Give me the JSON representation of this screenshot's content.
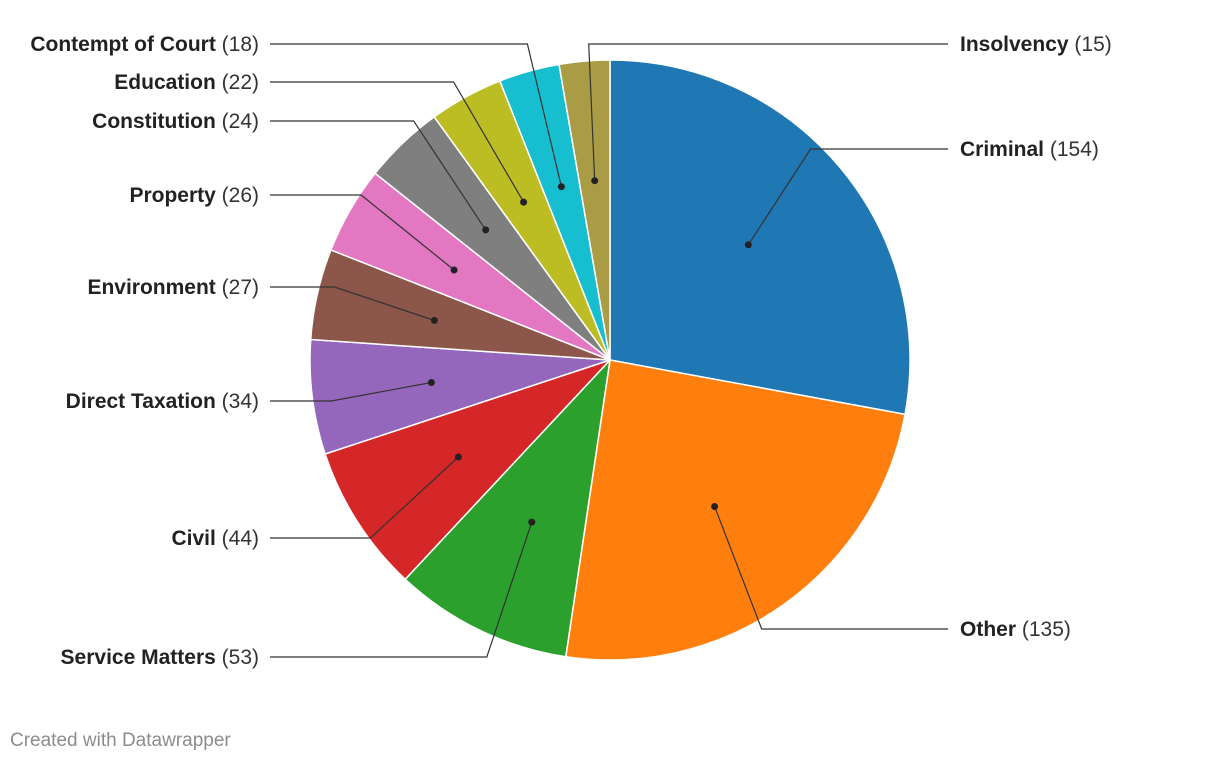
{
  "chart_data": {
    "type": "pie",
    "title": "",
    "start_angle_deg": 0,
    "direction": "clockwise",
    "slices": [
      {
        "label": "Criminal",
        "value": 154,
        "color": "#1f77b4",
        "side": "right"
      },
      {
        "label": "Other",
        "value": 135,
        "color": "#ff7f0e",
        "side": "right"
      },
      {
        "label": "Service Matters",
        "value": 53,
        "color": "#2ca02c",
        "side": "left"
      },
      {
        "label": "Civil",
        "value": 44,
        "color": "#d62728",
        "side": "left"
      },
      {
        "label": "Direct Taxation",
        "value": 34,
        "color": "#9467bd",
        "side": "left"
      },
      {
        "label": "Environment",
        "value": 27,
        "color": "#8c564b",
        "side": "left"
      },
      {
        "label": "Property",
        "value": 26,
        "color": "#e377c2",
        "side": "left"
      },
      {
        "label": "Constitution",
        "value": 24,
        "color": "#7f7f7f",
        "side": "left"
      },
      {
        "label": "Education",
        "value": 22,
        "color": "#bcbd22",
        "side": "left"
      },
      {
        "label": "Contempt of Court",
        "value": 18,
        "color": "#17becf",
        "side": "left"
      },
      {
        "label": "Insolvency",
        "value": 15,
        "color": "#aa9c44",
        "side": "right"
      }
    ],
    "legend": "none",
    "labels": "callout lines with name and value"
  },
  "footer": {
    "credit": "Created with Datawrapper"
  }
}
